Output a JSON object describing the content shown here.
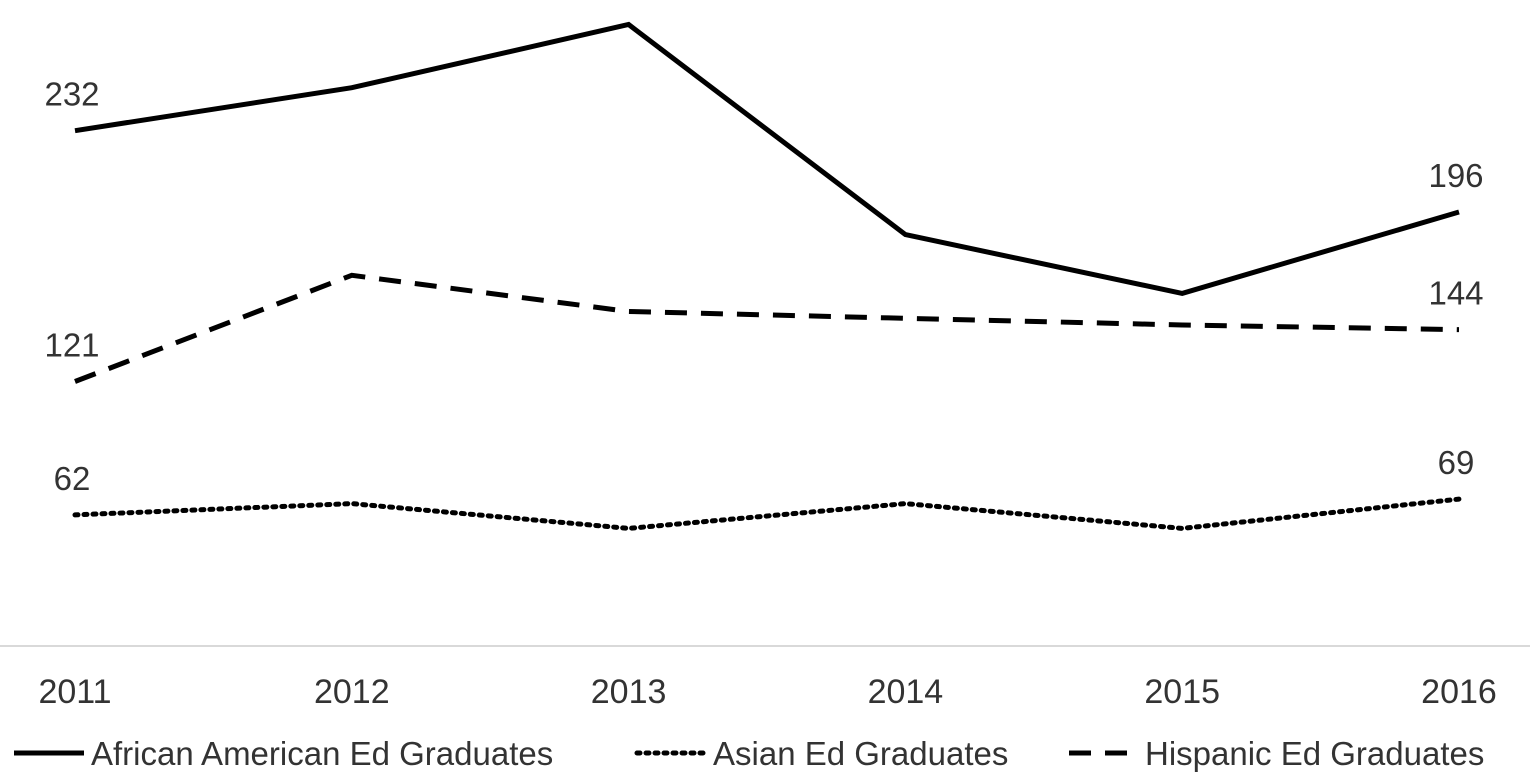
{
  "chart_data": {
    "type": "line",
    "title": "",
    "xlabel": "",
    "ylabel": "",
    "categories": [
      "2011",
      "2012",
      "2013",
      "2014",
      "2015",
      "2016"
    ],
    "ylim": [
      0,
      300
    ],
    "grid": false,
    "legend_position": "bottom",
    "series": [
      {
        "name": "African American Ed Graduates",
        "values": [
          232,
          251,
          279,
          186,
          160,
          196
        ],
        "style": "solid",
        "color": "#000000",
        "labels": [
          "232",
          "",
          "",
          "",
          "",
          "196"
        ]
      },
      {
        "name": "Asian Ed Graduates",
        "values": [
          62,
          67,
          56,
          67,
          56,
          69
        ],
        "style": "dotted",
        "color": "#000000",
        "labels": [
          "62",
          "",
          "",
          "",
          "",
          "69"
        ]
      },
      {
        "name": "Hispanic Ed Graduates",
        "values": [
          121,
          168,
          152,
          149,
          146,
          144
        ],
        "style": "dashed",
        "color": "#000000",
        "labels": [
          "121",
          "",
          "",
          "",
          "",
          "144"
        ]
      }
    ]
  }
}
